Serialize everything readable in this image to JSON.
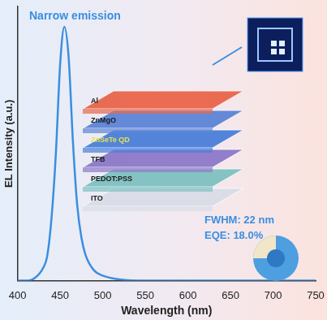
{
  "chart_data": {
    "type": "line",
    "x": [
      400,
      410,
      420,
      430,
      435,
      440,
      445,
      450,
      455,
      460,
      465,
      470,
      475,
      480,
      490,
      500,
      520,
      550,
      600,
      650,
      700,
      750
    ],
    "values": [
      0,
      0,
      0.01,
      0.05,
      0.1,
      0.25,
      0.5,
      0.85,
      1.0,
      0.88,
      0.55,
      0.3,
      0.17,
      0.1,
      0.04,
      0.02,
      0.005,
      0,
      0,
      0,
      0,
      0
    ],
    "color": "#3a8ee0",
    "xlabel": "Wavelength (nm)",
    "ylabel": "EL Intensity (a.u.)",
    "xlim": [
      400,
      750
    ],
    "xticks": [
      400,
      450,
      500,
      550,
      600,
      650,
      700,
      750
    ],
    "ylim": [
      0,
      1.08
    ],
    "tick_labels": "x",
    "grid": false,
    "annotations": [
      "Narrow emission",
      "FWHM: 22 nm",
      "EQE: 18.0%"
    ],
    "layers": [
      "Al",
      "ZnMgO",
      "ZnSeTe QD",
      "TFB",
      "PEDOT:PSS",
      "ITO"
    ]
  }
}
